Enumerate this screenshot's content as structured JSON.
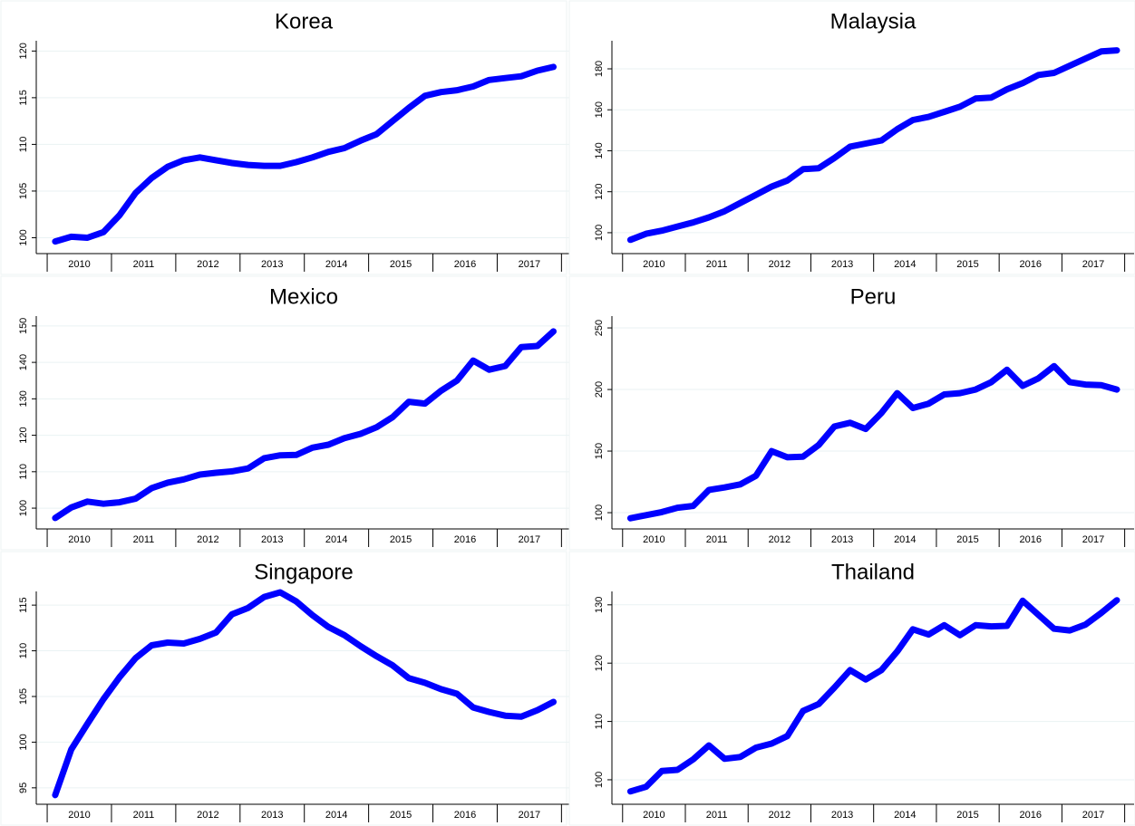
{
  "chart_data": [
    {
      "type": "line",
      "title": "Korea",
      "categories": [
        "2010",
        "2011",
        "2012",
        "2013",
        "2014",
        "2015",
        "2016",
        "2017"
      ],
      "x": [
        2010.125,
        2010.375,
        2010.625,
        2010.875,
        2011.125,
        2011.375,
        2011.625,
        2011.875,
        2012.125,
        2012.375,
        2012.625,
        2012.875,
        2013.125,
        2013.375,
        2013.625,
        2013.875,
        2014.125,
        2014.375,
        2014.625,
        2014.875,
        2015.125,
        2015.375,
        2015.625,
        2015.875,
        2016.125,
        2016.375,
        2016.625,
        2016.875,
        2017.125,
        2017.375,
        2017.625,
        2017.875
      ],
      "xlim": [
        2009.83,
        2018.15
      ],
      "ylim": [
        98.3,
        121.1
      ],
      "yticks": [
        100,
        105,
        110,
        115,
        120
      ],
      "grid": true,
      "series": [
        {
          "color": "#0000ff",
          "values": [
            99.6,
            100.1,
            100.0,
            100.6,
            102.4,
            104.8,
            106.4,
            107.6,
            108.3,
            108.6,
            108.3,
            108.0,
            107.8,
            107.7,
            107.7,
            108.1,
            108.6,
            109.2,
            109.6,
            110.4,
            111.1,
            112.5,
            113.9,
            115.2,
            115.6,
            115.8,
            116.2,
            116.9,
            117.1,
            117.3,
            117.9,
            118.3
          ]
        }
      ]
    },
    {
      "type": "line",
      "title": "Malaysia",
      "categories": [
        "2010",
        "2011",
        "2012",
        "2013",
        "2014",
        "2015",
        "2016",
        "2017"
      ],
      "x": [
        2010.125,
        2010.375,
        2010.625,
        2010.875,
        2011.125,
        2011.375,
        2011.625,
        2011.875,
        2012.125,
        2012.375,
        2012.625,
        2012.875,
        2013.125,
        2013.375,
        2013.625,
        2013.875,
        2014.125,
        2014.375,
        2014.625,
        2014.875,
        2015.125,
        2015.375,
        2015.625,
        2015.875,
        2016.125,
        2016.375,
        2016.625,
        2016.875,
        2017.125,
        2017.375,
        2017.625,
        2017.875
      ],
      "xlim": [
        2009.83,
        2018.15
      ],
      "ylim": [
        89.8,
        193.7
      ],
      "yticks": [
        100,
        120,
        140,
        160,
        180
      ],
      "grid": true,
      "series": [
        {
          "color": "#0000ff",
          "values": [
            96.5,
            99.5,
            101,
            103,
            105,
            107.5,
            110.5,
            114.5,
            118.5,
            122.5,
            125.5,
            131,
            131.5,
            136.5,
            142,
            143.5,
            145,
            150.5,
            155,
            156.5,
            159,
            161.5,
            165.5,
            166,
            170,
            173,
            177,
            178,
            181.5,
            185,
            188.5,
            189
          ]
        }
      ]
    },
    {
      "type": "line",
      "title": "Mexico",
      "categories": [
        "2010",
        "2011",
        "2012",
        "2013",
        "2014",
        "2015",
        "2016",
        "2017"
      ],
      "x": [
        2010.125,
        2010.375,
        2010.625,
        2010.875,
        2011.125,
        2011.375,
        2011.625,
        2011.875,
        2012.125,
        2012.375,
        2012.625,
        2012.875,
        2013.125,
        2013.375,
        2013.625,
        2013.875,
        2014.125,
        2014.375,
        2014.625,
        2014.875,
        2015.125,
        2015.375,
        2015.625,
        2015.875,
        2016.125,
        2016.375,
        2016.625,
        2016.875,
        2017.125,
        2017.375,
        2017.625,
        2017.875
      ],
      "xlim": [
        2009.83,
        2018.15
      ],
      "ylim": [
        94.3,
        152.7
      ],
      "yticks": [
        100,
        110,
        120,
        130,
        140,
        150
      ],
      "grid": true,
      "series": [
        {
          "color": "#0000ff",
          "values": [
            97.3,
            100.2,
            101.8,
            101.2,
            101.6,
            102.6,
            105.5,
            107,
            107.9,
            109.2,
            109.7,
            110.1,
            110.9,
            113.7,
            114.5,
            114.6,
            116.6,
            117.4,
            119.2,
            120.4,
            122.2,
            125,
            129.2,
            128.7,
            132.2,
            135,
            140.5,
            138,
            139,
            144.2,
            144.5,
            148.5
          ]
        }
      ]
    },
    {
      "type": "line",
      "title": "Peru",
      "categories": [
        "2010",
        "2011",
        "2012",
        "2013",
        "2014",
        "2015",
        "2016",
        "2017"
      ],
      "x": [
        2010.125,
        2010.375,
        2010.625,
        2010.875,
        2011.125,
        2011.375,
        2011.625,
        2011.875,
        2012.125,
        2012.375,
        2012.625,
        2012.875,
        2013.125,
        2013.375,
        2013.625,
        2013.875,
        2014.125,
        2014.375,
        2014.625,
        2014.875,
        2015.125,
        2015.375,
        2015.625,
        2015.875,
        2016.125,
        2016.375,
        2016.625,
        2016.875,
        2017.125,
        2017.375,
        2017.625,
        2017.875
      ],
      "xlim": [
        2009.83,
        2018.15
      ],
      "ylim": [
        86.8,
        259.6
      ],
      "yticks": [
        100,
        150,
        200,
        250
      ],
      "grid": true,
      "series": [
        {
          "color": "#0000ff",
          "values": [
            95.5,
            98,
            100.5,
            104,
            105.5,
            118.5,
            120.5,
            123,
            130,
            150,
            145,
            145.5,
            155,
            170,
            173,
            168,
            181,
            197,
            185,
            188.5,
            196,
            197,
            200,
            206,
            216,
            203,
            209,
            219,
            206,
            204,
            203.5,
            200
          ]
        }
      ]
    },
    {
      "type": "line",
      "title": "Singapore",
      "categories": [
        "2010",
        "2011",
        "2012",
        "2013",
        "2014",
        "2015",
        "2016",
        "2017"
      ],
      "x": [
        2010.125,
        2010.375,
        2010.625,
        2010.875,
        2011.125,
        2011.375,
        2011.625,
        2011.875,
        2012.125,
        2012.375,
        2012.625,
        2012.875,
        2013.125,
        2013.375,
        2013.625,
        2013.875,
        2014.125,
        2014.375,
        2014.625,
        2014.875,
        2015.125,
        2015.375,
        2015.625,
        2015.875,
        2016.125,
        2016.375,
        2016.625,
        2016.875,
        2017.125,
        2017.375,
        2017.625,
        2017.875
      ],
      "xlim": [
        2009.83,
        2018.15
      ],
      "ylim": [
        93.2,
        116.5
      ],
      "yticks": [
        95,
        100,
        105,
        110,
        115
      ],
      "grid": true,
      "series": [
        {
          "color": "#0000ff",
          "values": [
            94.2,
            99.2,
            102,
            104.7,
            107.1,
            109.2,
            110.6,
            110.9,
            110.8,
            111.3,
            112,
            114,
            114.7,
            115.9,
            116.4,
            115.4,
            113.9,
            112.6,
            111.7,
            110.5,
            109.4,
            108.4,
            107,
            106.5,
            105.8,
            105.3,
            103.8,
            103.3,
            102.9,
            102.8,
            103.5,
            104.4
          ]
        }
      ]
    },
    {
      "type": "line",
      "title": "Thailand",
      "categories": [
        "2010",
        "2011",
        "2012",
        "2013",
        "2014",
        "2015",
        "2016",
        "2017"
      ],
      "x": [
        2010.125,
        2010.375,
        2010.625,
        2010.875,
        2011.125,
        2011.375,
        2011.625,
        2011.875,
        2012.125,
        2012.375,
        2012.625,
        2012.875,
        2013.125,
        2013.375,
        2013.625,
        2013.875,
        2014.125,
        2014.375,
        2014.625,
        2014.875,
        2015.125,
        2015.375,
        2015.625,
        2015.875,
        2016.125,
        2016.375,
        2016.625,
        2016.875,
        2017.125,
        2017.375,
        2017.625,
        2017.875
      ],
      "xlim": [
        2009.83,
        2018.15
      ],
      "ylim": [
        95.8,
        132.3
      ],
      "yticks": [
        100,
        110,
        120,
        130
      ],
      "grid": true,
      "series": [
        {
          "color": "#0000ff",
          "values": [
            98,
            98.8,
            101.5,
            101.7,
            103.5,
            105.9,
            103.6,
            103.9,
            105.5,
            106.2,
            107.5,
            111.8,
            113,
            115.8,
            118.8,
            117.2,
            118.8,
            122,
            125.8,
            124.9,
            126.5,
            124.8,
            126.5,
            126.3,
            126.4,
            130.7,
            128.3,
            125.9,
            125.6,
            126.6,
            128.6,
            130.8
          ]
        }
      ]
    }
  ]
}
